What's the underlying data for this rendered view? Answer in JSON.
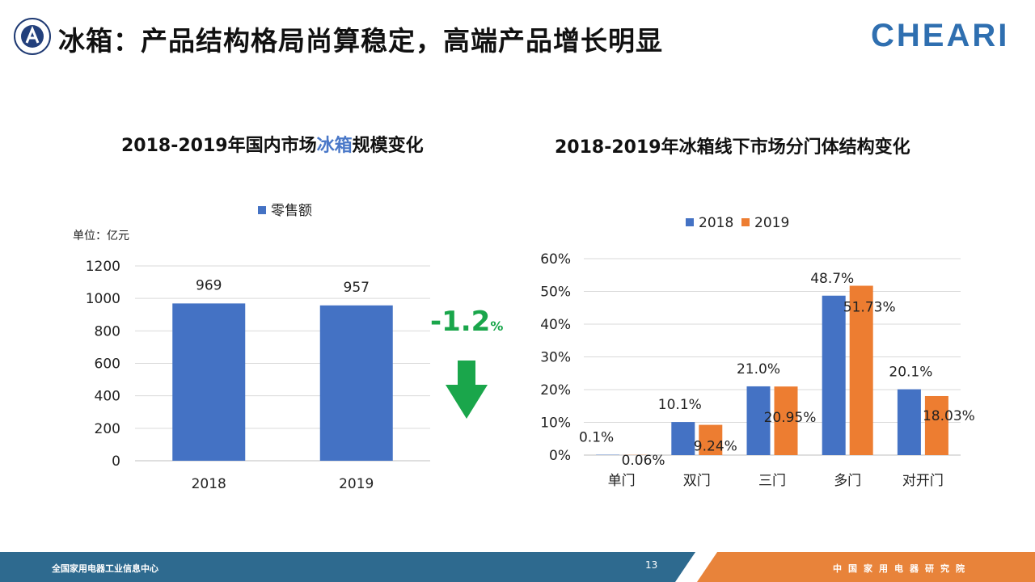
{
  "slide": {
    "title": "冰箱：产品结构格局尚算稳定，高端产品增长明显",
    "brand": "CHEARI",
    "footer_left": "全国家用电器工业信息中心",
    "footer_right": "中国家用电器研究院",
    "page_number": "13"
  },
  "colors": {
    "blue": "#4472c4",
    "orange": "#ed7d31",
    "green": "#1aa64b",
    "footer_left": "#2e6a8f",
    "footer_right": "#e8833a"
  },
  "chart_data": [
    {
      "type": "bar",
      "title_parts": [
        "2018-2019年国内市场",
        "冰箱",
        "规模变化"
      ],
      "unit_label": "单位：亿元",
      "categories": [
        "2018",
        "2019"
      ],
      "series": [
        {
          "name": "零售额",
          "values": [
            969,
            957
          ],
          "labels": [
            "969",
            "957"
          ]
        }
      ],
      "yticks": [
        "0",
        "200",
        "400",
        "600",
        "800",
        "1000",
        "1200"
      ],
      "ylim": [
        0,
        1200
      ],
      "grid": true,
      "legend": "top-center",
      "annotation": {
        "value": "-1.2",
        "unit": "%",
        "icon": "down-arrow-icon"
      }
    },
    {
      "type": "bar",
      "title": "2018-2019年冰箱线下市场分门体结构变化",
      "categories": [
        "单门",
        "双门",
        "三门",
        "多门",
        "对开门"
      ],
      "series": [
        {
          "name": "2018",
          "values": [
            0.1,
            10.1,
            21.0,
            48.7,
            20.1
          ],
          "labels": [
            "0.1%",
            "10.1%",
            "21.0%",
            "48.7%",
            "20.1%"
          ]
        },
        {
          "name": "2019",
          "values": [
            0.06,
            9.24,
            20.95,
            51.73,
            18.03
          ],
          "labels": [
            "0.06%",
            "9.24%",
            "20.95%",
            "51.73%",
            "18.03%"
          ]
        }
      ],
      "yticks": [
        "0%",
        "10%",
        "20%",
        "30%",
        "40%",
        "50%",
        "60%"
      ],
      "ylim": [
        0,
        60
      ],
      "grid": true,
      "legend": "top-center"
    }
  ]
}
